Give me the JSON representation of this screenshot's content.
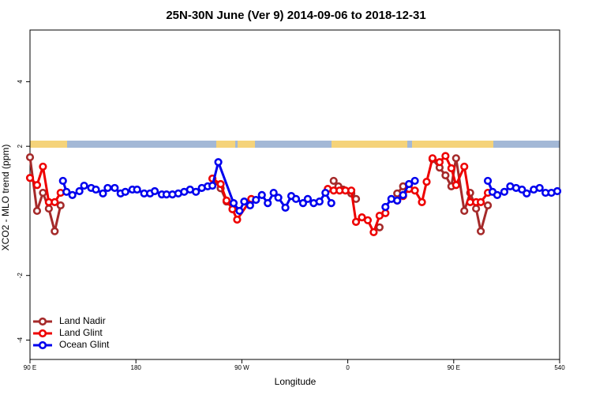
{
  "chart_data": {
    "type": "line",
    "title": "25N-30N June (Ver 9)   2014-09-06 to 2018-12-31",
    "x_label": "Longitude",
    "y_label": "XCO2 - MLO trend (ppm)",
    "xlim": [
      90,
      540
    ],
    "xticks": [
      {
        "value": 90,
        "label": "90 E"
      },
      180,
      {
        "value": 270,
        "label": "90 W"
      },
      {
        "value": 360,
        "label": "0"
      },
      {
        "value": 450,
        "label": "90 E"
      },
      540
    ],
    "ylim": [
      -4.6,
      5.6
    ],
    "yticks": [
      -4,
      -2,
      2,
      4
    ],
    "legend": "bottom-left",
    "series": [
      {
        "name": "Land Nadir",
        "color": "#a52a2a",
        "x": [
          90,
          96,
          101,
          106,
          111,
          116,
          null,
          245,
          252,
          257,
          null,
          348,
          352,
          356,
          363,
          367,
          null,
          387,
          null,
          402,
          407,
          412,
          null,
          432,
          438,
          443,
          448,
          452,
          459,
          464,
          469,
          473,
          479
        ],
        "values": [
          1.66,
          0.0,
          0.56,
          0.07,
          -0.63,
          0.17,
          null,
          1.0,
          0.7,
          0.29,
          null,
          0.93,
          0.76,
          0.66,
          0.54,
          0.37,
          null,
          -0.51,
          null,
          0.54,
          0.76,
          0.8,
          null,
          1.6,
          1.34,
          1.1,
          0.76,
          1.63,
          0.0,
          0.56,
          0.07,
          -0.63,
          0.17
        ]
      },
      {
        "name": "Land Glint",
        "color": "#ee0000",
        "x": [
          90,
          96,
          101,
          106,
          111,
          116,
          null,
          245,
          252,
          257,
          262,
          266,
          278,
          null,
          343,
          348,
          353,
          358,
          363,
          367,
          372,
          377,
          382,
          387,
          392,
          null,
          402,
          407,
          412,
          417,
          423,
          427,
          432,
          438,
          443,
          448,
          452,
          459,
          464,
          469,
          473,
          479
        ],
        "values": [
          1.02,
          0.8,
          1.37,
          0.27,
          0.27,
          0.56,
          null,
          1.0,
          0.83,
          0.32,
          0.05,
          -0.27,
          0.37,
          null,
          0.68,
          0.63,
          0.63,
          0.63,
          0.63,
          -0.34,
          -0.2,
          -0.29,
          -0.66,
          -0.15,
          -0.07,
          null,
          0.32,
          0.46,
          0.68,
          0.63,
          0.27,
          0.9,
          1.63,
          1.51,
          1.7,
          1.32,
          0.8,
          1.37,
          0.27,
          0.27,
          0.27,
          0.56
        ]
      },
      {
        "name": "Ocean Glint",
        "color": "#0000ee",
        "x": [
          118,
          121,
          126,
          132,
          136,
          142,
          146,
          152,
          156,
          162,
          167,
          171,
          177,
          181,
          187,
          192,
          196,
          202,
          206,
          211,
          216,
          221,
          226,
          231,
          236,
          241,
          245,
          250,
          263,
          268,
          272,
          277,
          282,
          287,
          292,
          297,
          301,
          307,
          312,
          316,
          322,
          326,
          331,
          336,
          341,
          346,
          null,
          392,
          397,
          402,
          407,
          412,
          417,
          null,
          479,
          483,
          487,
          493,
          498,
          503,
          508,
          512,
          518,
          523,
          528,
          533,
          538
        ],
        "values": [
          0.93,
          0.59,
          0.49,
          0.61,
          0.78,
          0.71,
          0.66,
          0.54,
          0.71,
          0.71,
          0.54,
          0.59,
          0.66,
          0.66,
          0.54,
          0.54,
          0.61,
          0.51,
          0.51,
          0.51,
          0.54,
          0.59,
          0.66,
          0.59,
          0.71,
          0.76,
          0.78,
          1.51,
          0.24,
          0,
          0.29,
          0.17,
          0.34,
          0.49,
          0.24,
          0.56,
          0.41,
          0.1,
          0.46,
          0.37,
          0.24,
          0.37,
          0.24,
          0.29,
          0.56,
          0.24,
          null,
          0.12,
          0.37,
          0.32,
          0.49,
          0.83,
          0.93,
          null,
          0.93,
          0.59,
          0.49,
          0.59,
          0.76,
          0.71,
          0.66,
          0.54,
          0.66,
          0.71,
          0.56,
          0.56,
          0.61
        ]
      }
    ]
  }
}
